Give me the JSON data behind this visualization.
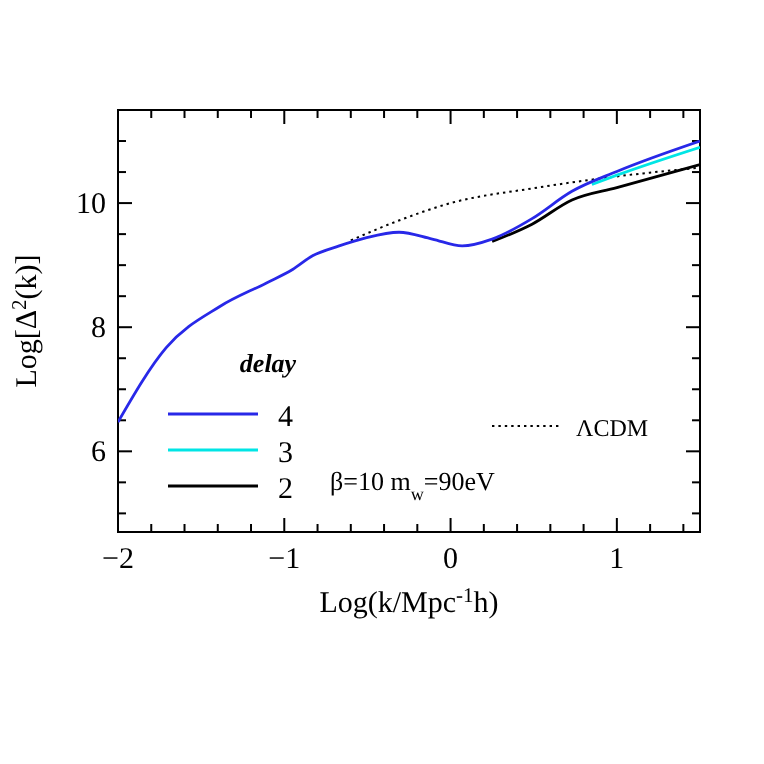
{
  "chart_data": {
    "type": "line",
    "xlabel": "Log(k/Mpc$^{-1}$h)",
    "ylabel": "Log[Δ$^{2}$(k)]",
    "legend_title": "delay",
    "legend": "bottom left",
    "line_style": "solid",
    "marker": "none",
    "xlim": [
      -2,
      1.5
    ],
    "ylim": [
      4.7,
      11.5
    ],
    "xticks": [
      -2,
      {
        "value": -1.8,
        "label": null
      },
      {
        "value": -1.6,
        "label": null
      },
      {
        "value": -1.4,
        "label": null
      },
      {
        "value": -1.2,
        "label": null
      },
      -1,
      {
        "value": -0.8,
        "label": null
      },
      {
        "value": -0.6,
        "label": null
      },
      {
        "value": -0.4,
        "label": null
      },
      {
        "value": -0.2,
        "label": null
      },
      0,
      {
        "value": 0.2,
        "label": null
      },
      {
        "value": 0.4,
        "label": null
      },
      {
        "value": 0.6,
        "label": null
      },
      {
        "value": 0.8,
        "label": null
      },
      1,
      {
        "value": 1.2,
        "label": null
      },
      {
        "value": 1.4,
        "label": null
      }
    ],
    "yticks": [
      {
        "value": 5,
        "label": null
      },
      {
        "value": 5.5,
        "label": null
      },
      6,
      {
        "value": 6.5,
        "label": null
      },
      {
        "value": 7,
        "label": null
      },
      {
        "value": 7.5,
        "label": null
      },
      8,
      {
        "value": 8.5,
        "label": null
      },
      {
        "value": 9,
        "label": null
      },
      {
        "value": 9.5,
        "label": null
      },
      10,
      {
        "value": 10.5,
        "label": null
      },
      {
        "value": 11,
        "label": null
      }
    ],
    "annotations": [
      "β=10 m$_{w}$=90eV"
    ],
    "series": [
      {
        "name": "ΛCDM",
        "color": "#000000",
        "line_style": "dotted",
        "x": [
          -0.6,
          -0.3,
          0,
          0.5,
          1,
          1.5
        ],
        "values": [
          9.4,
          9.73,
          10.0,
          10.24,
          10.43,
          10.57
        ]
      },
      {
        "name": "2",
        "color": "#000000",
        "x": [
          0.25,
          0.49,
          0.73,
          1.0,
          1.5
        ],
        "values": [
          9.38,
          9.66,
          10.05,
          10.25,
          10.62
        ]
      },
      {
        "name": "3",
        "color": "#00e5e5",
        "x": [
          0.85,
          1.0,
          1.5
        ],
        "values": [
          10.3,
          10.45,
          10.9
        ]
      },
      {
        "name": "4",
        "color": "#2828e8",
        "x": [
          -2,
          -1.71,
          -1.39,
          -1.11,
          -0.95,
          -0.83,
          -0.67,
          -0.51,
          -0.31,
          -0.11,
          0.07,
          0.25,
          0.49,
          0.73,
          1.0,
          1.5
        ],
        "values": [
          6.47,
          7.67,
          8.33,
          8.71,
          8.93,
          9.15,
          9.31,
          9.44,
          9.53,
          9.42,
          9.31,
          9.42,
          9.75,
          10.19,
          10.51,
          11.0
        ]
      }
    ]
  }
}
